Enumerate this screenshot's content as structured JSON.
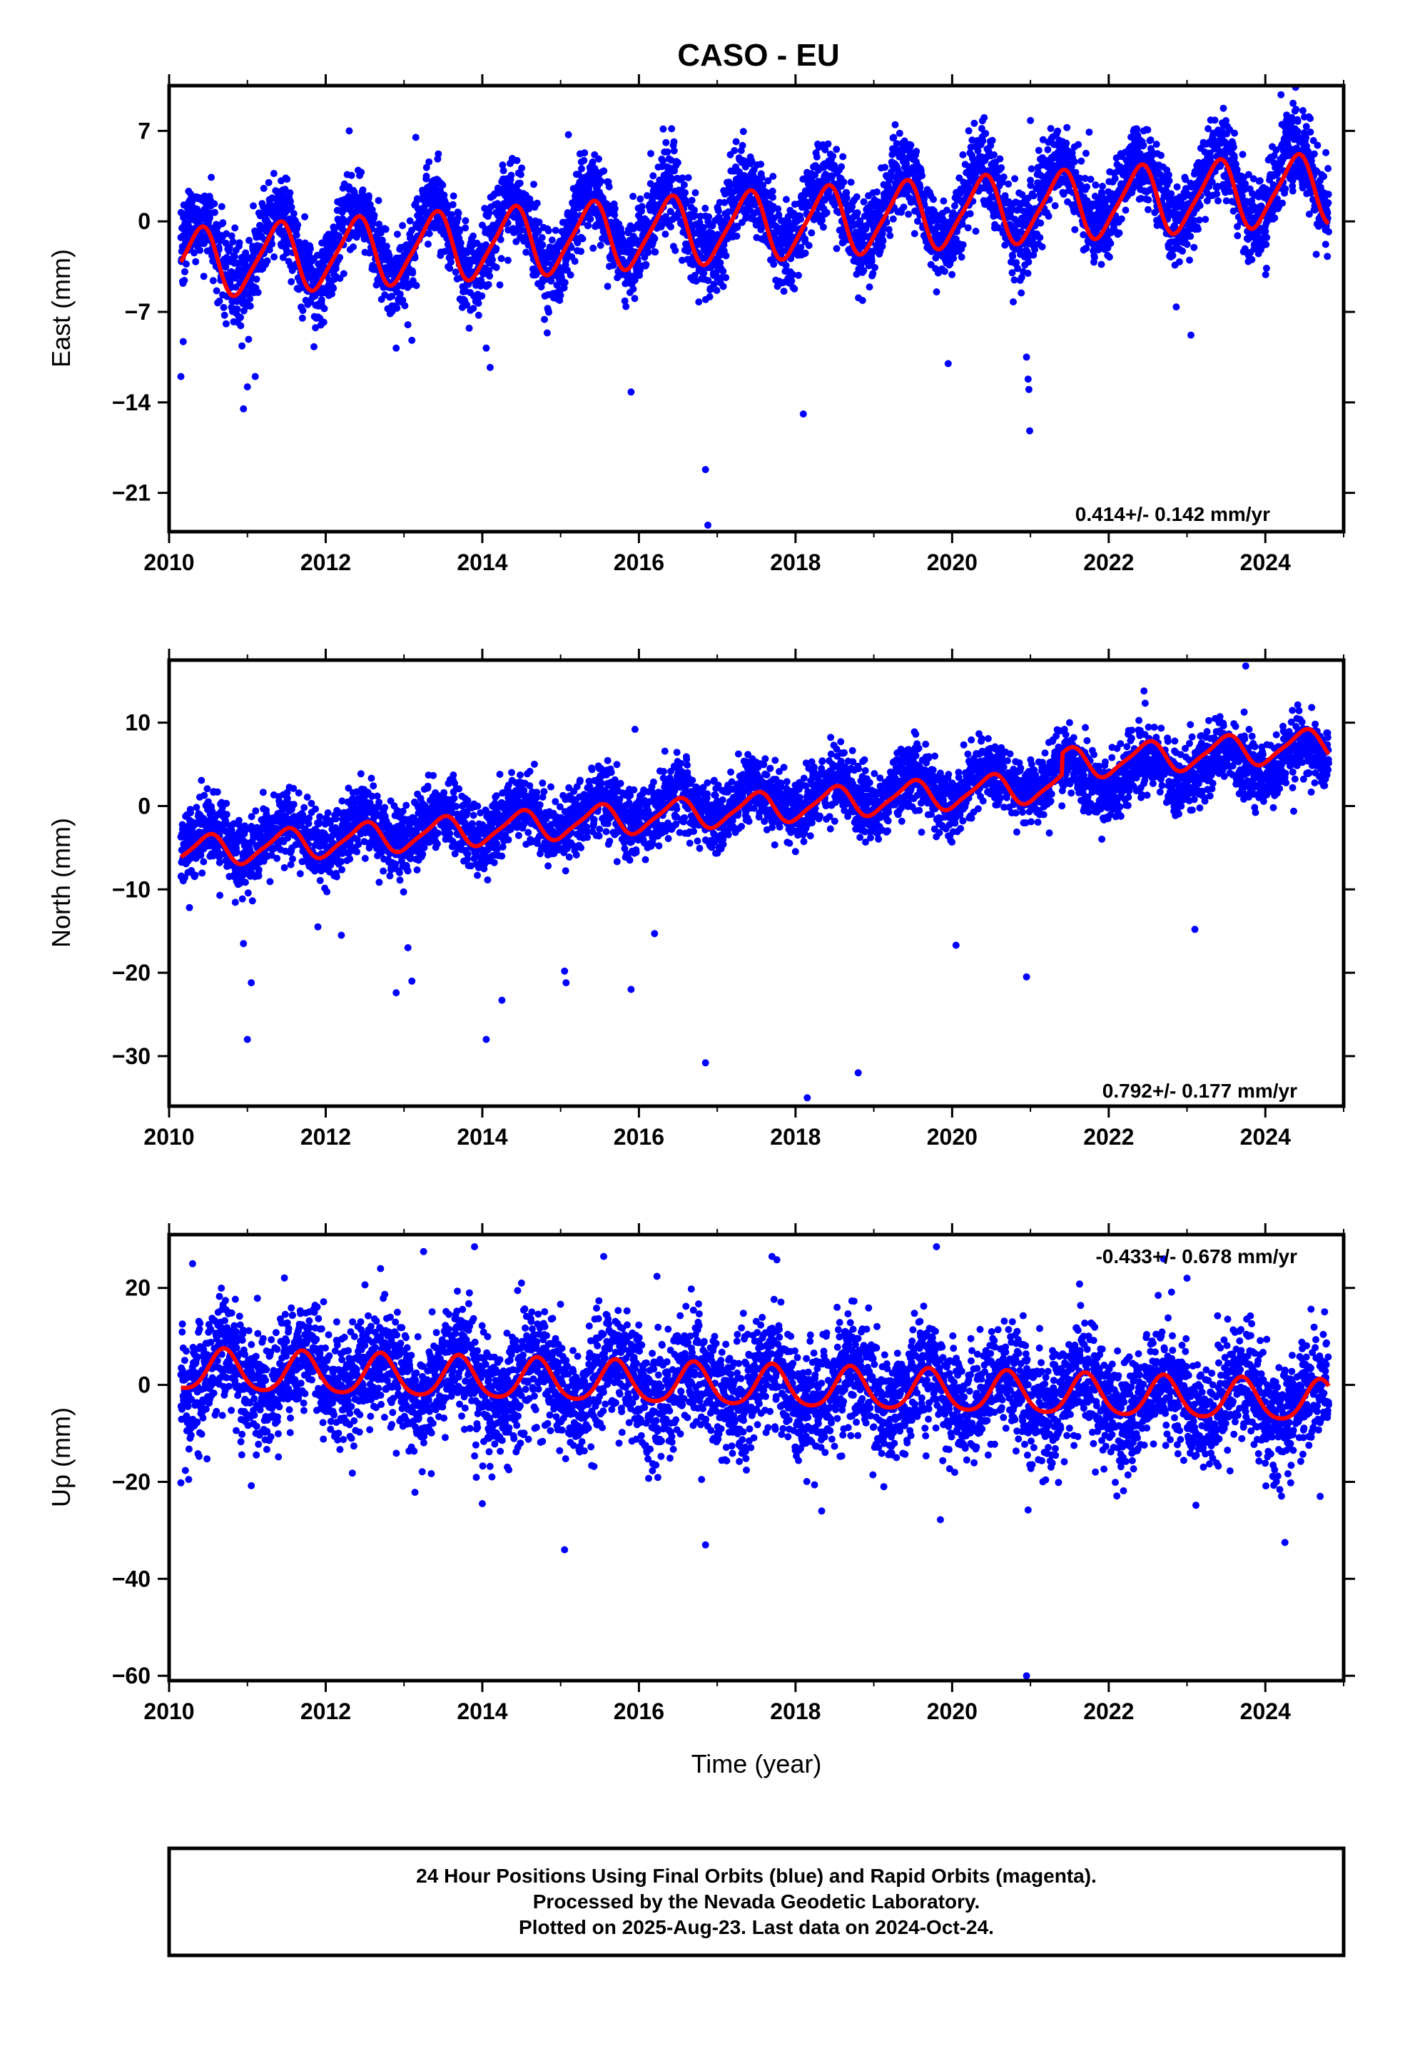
{
  "title": "CASO - EU",
  "xlabel": "Time (year)",
  "colors": {
    "data": "#0000ff",
    "model": "#ff0000",
    "frame": "#000000"
  },
  "footer": [
    "24 Hour Positions Using Final Orbits (blue) and Rapid Orbits (magenta).",
    "Processed by the Nevada Geodetic Laboratory.",
    "Plotted on 2025-Aug-23. Last data on 2024-Oct-24."
  ],
  "chart_data": [
    {
      "type": "scatter",
      "ylabel": "East (mm)",
      "rate_label": "0.414+/- 0.142 mm/yr",
      "rate_position": "bottom-right",
      "xlim": [
        2010,
        2025
      ],
      "ylim": [
        -24,
        10.5
      ],
      "xticks": [
        2010,
        2012,
        2014,
        2016,
        2018,
        2020,
        2022,
        2024
      ],
      "yticks": [
        7,
        0,
        -7,
        -14,
        -21
      ],
      "data_range": [
        2010.15,
        2024.81
      ],
      "series": [
        {
          "role": "daily positions",
          "color": "#0000ff",
          "envelope": {
            "offset_at_start": -2.7,
            "slope_mm_per_yr": 0.4,
            "annual_amplitude": 2.8,
            "annual_phase_year": 0.38,
            "scatter_sd": 1.6
          },
          "outliers": [
            [
              2010.15,
              -12.0
            ],
            [
              2010.18,
              -9.3
            ],
            [
              2010.95,
              -14.5
            ],
            [
              2011.0,
              -12.8
            ],
            [
              2011.1,
              -12.0
            ],
            [
              2011.85,
              -9.7
            ],
            [
              2012.3,
              7.0
            ],
            [
              2012.9,
              -9.8
            ],
            [
              2013.1,
              -9.2
            ],
            [
              2013.15,
              6.5
            ],
            [
              2014.05,
              -9.8
            ],
            [
              2014.1,
              -11.3
            ],
            [
              2015.1,
              6.7
            ],
            [
              2015.9,
              -13.2
            ],
            [
              2016.85,
              -19.2
            ],
            [
              2016.88,
              -23.5
            ],
            [
              2018.1,
              -14.9
            ],
            [
              2019.95,
              -11.0
            ],
            [
              2020.95,
              -10.5
            ],
            [
              2020.97,
              -12.2
            ],
            [
              2020.98,
              -13.0
            ],
            [
              2020.99,
              -16.2
            ],
            [
              2021.0,
              7.8
            ],
            [
              2021.75,
              6.9
            ],
            [
              2023.05,
              -8.8
            ],
            [
              2024.2,
              9.8
            ]
          ]
        },
        {
          "role": "model fit",
          "color": "#ff0000",
          "model": {
            "offset_at_start": -3.3,
            "slope_mm_per_yr": 0.4,
            "annual_amplitude": 2.6,
            "annual_phase_year": 0.38,
            "semiannual_amplitude": 0.5,
            "semiannual_phase_year": 0.0
          }
        }
      ]
    },
    {
      "type": "scatter",
      "ylabel": "North (mm)",
      "rate_label": "0.792+/- 0.177 mm/yr",
      "rate_position": "bottom-right",
      "xlim": [
        2010,
        2025
      ],
      "ylim": [
        -36,
        17.5
      ],
      "xticks": [
        2010,
        2012,
        2014,
        2016,
        2018,
        2020,
        2022,
        2024
      ],
      "yticks": [
        10,
        0,
        -10,
        -20,
        -30
      ],
      "data_range": [
        2010.15,
        2024.81
      ],
      "series": [
        {
          "role": "daily positions",
          "color": "#0000ff",
          "envelope": {
            "offset_at_start": -4.8,
            "slope_mm_per_yr": 0.72,
            "annual_amplitude": 1.9,
            "annual_phase_year": 0.48,
            "scatter_sd": 2.0
          },
          "outliers": [
            [
              2010.95,
              -16.5
            ],
            [
              2011.05,
              -21.2
            ],
            [
              2011.0,
              -28.0
            ],
            [
              2011.9,
              -14.5
            ],
            [
              2012.2,
              -15.5
            ],
            [
              2012.9,
              -22.4
            ],
            [
              2013.1,
              -21.0
            ],
            [
              2013.05,
              -17.0
            ],
            [
              2014.05,
              -28.0
            ],
            [
              2014.25,
              -23.3
            ],
            [
              2015.05,
              -19.8
            ],
            [
              2015.07,
              -21.2
            ],
            [
              2015.9,
              -22.0
            ],
            [
              2015.95,
              9.2
            ],
            [
              2016.2,
              -15.3
            ],
            [
              2016.85,
              -30.8
            ],
            [
              2018.15,
              -35.0
            ],
            [
              2018.8,
              -32.0
            ],
            [
              2020.05,
              -16.7
            ],
            [
              2020.95,
              -20.5
            ],
            [
              2021.5,
              10.0
            ],
            [
              2022.45,
              13.8
            ],
            [
              2023.1,
              -14.8
            ],
            [
              2023.75,
              16.8
            ]
          ]
        },
        {
          "role": "model fit",
          "color": "#ff0000",
          "model": {
            "offset_at_start": -5.6,
            "slope_mm_per_yr": 0.72,
            "annual_amplitude": 1.8,
            "annual_phase_year": 0.48,
            "semiannual_amplitude": 0.4,
            "semiannual_phase_year": 0.1,
            "offsets": [
              [
                2021.4,
                2.5
              ]
            ]
          }
        }
      ]
    },
    {
      "type": "scatter",
      "ylabel": "Up (mm)",
      "rate_label": "-0.433+/- 0.678 mm/yr",
      "rate_position": "top-right",
      "xlim": [
        2010,
        2025
      ],
      "ylim": [
        -61,
        31
      ],
      "xticks": [
        2010,
        2012,
        2014,
        2016,
        2018,
        2020,
        2022,
        2024
      ],
      "yticks": [
        20,
        0,
        -20,
        -40,
        -60
      ],
      "data_range": [
        2010.15,
        2024.81
      ],
      "series": [
        {
          "role": "daily positions",
          "color": "#0000ff",
          "envelope": {
            "offset_at_start": 3.0,
            "slope_mm_per_yr": -0.45,
            "annual_amplitude": 4.5,
            "annual_phase_year": 0.7,
            "scatter_sd": 6.0
          },
          "outliers": [
            [
              2010.3,
              25.0
            ],
            [
              2010.15,
              -20.2
            ],
            [
              2010.25,
              -19.5
            ],
            [
              2011.05,
              -20.8
            ],
            [
              2012.7,
              24.0
            ],
            [
              2013.25,
              27.5
            ],
            [
              2013.9,
              28.5
            ],
            [
              2014.0,
              -24.5
            ],
            [
              2014.5,
              21.0
            ],
            [
              2015.05,
              -34.0
            ],
            [
              2015.55,
              26.5
            ],
            [
              2016.8,
              -19.5
            ],
            [
              2016.85,
              -33.0
            ],
            [
              2017.7,
              26.5
            ],
            [
              2019.85,
              -27.8
            ],
            [
              2019.8,
              28.5
            ],
            [
              2020.95,
              -60.0
            ],
            [
              2020.97,
              -25.8
            ],
            [
              2022.7,
              26.0
            ],
            [
              2023.0,
              22.0
            ],
            [
              2024.25,
              -32.5
            ],
            [
              2024.7,
              -23.0
            ]
          ]
        },
        {
          "role": "model fit",
          "color": "#ff0000",
          "model": {
            "offset_at_start": 3.0,
            "slope_mm_per_yr": -0.45,
            "annual_amplitude": 4.2,
            "annual_phase_year": 0.7,
            "semiannual_amplitude": 0.6,
            "semiannual_phase_year": 0.2
          }
        }
      ]
    }
  ]
}
